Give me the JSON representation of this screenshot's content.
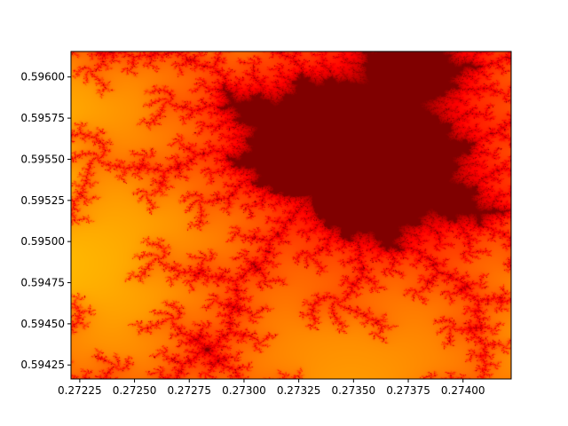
{
  "chart_data": {
    "type": "heatmap",
    "title": "",
    "xlabel": "",
    "ylabel": "",
    "colormap": "jet",
    "xlim": [
      0.27221,
      0.27422
    ],
    "ylim": [
      0.594165,
      0.596155
    ],
    "x_ticks": [
      {
        "value": 0.27225,
        "label": "0.27225"
      },
      {
        "value": 0.2725,
        "label": "0.27250"
      },
      {
        "value": 0.27275,
        "label": "0.27275"
      },
      {
        "value": 0.273,
        "label": "0.27300"
      },
      {
        "value": 0.27325,
        "label": "0.27325"
      },
      {
        "value": 0.2735,
        "label": "0.27350"
      },
      {
        "value": 0.27375,
        "label": "0.27375"
      },
      {
        "value": 0.274,
        "label": "0.27400"
      }
    ],
    "y_ticks": [
      {
        "value": 0.59425,
        "label": "0.59425"
      },
      {
        "value": 0.5945,
        "label": "0.59450"
      },
      {
        "value": 0.59475,
        "label": "0.59475"
      },
      {
        "value": 0.595,
        "label": "0.59500"
      },
      {
        "value": 0.59525,
        "label": "0.59525"
      },
      {
        "value": 0.5955,
        "label": "0.59550"
      },
      {
        "value": 0.59575,
        "label": "0.59575"
      },
      {
        "value": 0.596,
        "label": "0.59600"
      }
    ],
    "grid": false,
    "legend": "none"
  }
}
